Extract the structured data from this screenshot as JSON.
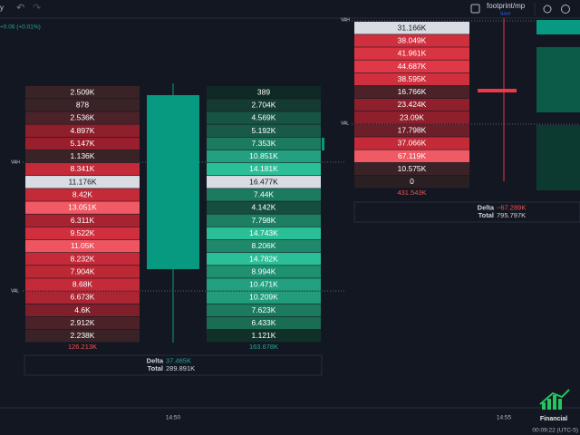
{
  "toolbar": {
    "symbol_fragment": "y",
    "layout_name": "footprint/mp",
    "save_label": "Save"
  },
  "price_change": "+0.06 (+0.01%)",
  "value_area": {
    "left": {
      "vah": "VAH",
      "val": "VAL"
    },
    "right": {
      "vah": "VAH",
      "val": "VAL"
    }
  },
  "footprints": [
    {
      "sell": [
        {
          "text": "2.509K",
          "color": "#3a2326"
        },
        {
          "text": "878",
          "color": "#3a2326"
        },
        {
          "text": "2.536K",
          "color": "#4a2228"
        },
        {
          "text": "4.897K",
          "color": "#8e1f2b"
        },
        {
          "text": "5.147K",
          "color": "#9a1f2c"
        },
        {
          "text": "1.136K",
          "color": "#3a2326"
        },
        {
          "text": "8.341K",
          "color": "#c42a38"
        },
        {
          "text": "11.176K",
          "color": "#d9dce3"
        },
        {
          "text": "8.42K",
          "color": "#c42a38"
        },
        {
          "text": "13.051K",
          "color": "#f05a64"
        },
        {
          "text": "6.311K",
          "color": "#a82330"
        },
        {
          "text": "9.522K",
          "color": "#d0303e"
        },
        {
          "text": "11.05K",
          "color": "#ee5560"
        },
        {
          "text": "8.232K",
          "color": "#c42a38"
        },
        {
          "text": "7.904K",
          "color": "#bd2835"
        },
        {
          "text": "8.68K",
          "color": "#c42a38"
        },
        {
          "text": "6.673K",
          "color": "#ab2532"
        },
        {
          "text": "4.6K",
          "color": "#7e1f29"
        },
        {
          "text": "2.912K",
          "color": "#4a2228"
        },
        {
          "text": "2.238K",
          "color": "#3a2326"
        }
      ],
      "buy": [
        {
          "text": "389",
          "color": "#0f2a25"
        },
        {
          "text": "2.704K",
          "color": "#143a32"
        },
        {
          "text": "4.569K",
          "color": "#185443"
        },
        {
          "text": "5.192K",
          "color": "#185a47"
        },
        {
          "text": "7.353K",
          "color": "#1c7a5e"
        },
        {
          "text": "10.851K",
          "color": "#22a07f"
        },
        {
          "text": "14.181K",
          "color": "#2bbf97"
        },
        {
          "text": "16.477K",
          "color": "#d9dce3"
        },
        {
          "text": "7.44K",
          "color": "#1c7a5e"
        },
        {
          "text": "4.142K",
          "color": "#164d3f"
        },
        {
          "text": "7.798K",
          "color": "#1c7f62"
        },
        {
          "text": "14.743K",
          "color": "#2bbf97"
        },
        {
          "text": "8.206K",
          "color": "#1e8a6b"
        },
        {
          "text": "14.782K",
          "color": "#2bbf97"
        },
        {
          "text": "8.994K",
          "color": "#1f9070"
        },
        {
          "text": "10.471K",
          "color": "#22a07f"
        },
        {
          "text": "10.209K",
          "color": "#229c7b"
        },
        {
          "text": "7.623K",
          "color": "#1c7a5e"
        },
        {
          "text": "6.433K",
          "color": "#1a6c53"
        },
        {
          "text": "1.121K",
          "color": "#12302a"
        }
      ],
      "sell_total": "126.213K",
      "buy_total": "163.678K",
      "delta_label": "Delta",
      "delta": "37.465K",
      "delta_color": "#26a69a",
      "total_label": "Total",
      "total": "289.891K"
    },
    {
      "sell": [
        {
          "text": "31.166K",
          "color": "#d9dce3"
        },
        {
          "text": "38.049K",
          "color": "#d0303e"
        },
        {
          "text": "41.961K",
          "color": "#d83442"
        },
        {
          "text": "44.687K",
          "color": "#e03846"
        },
        {
          "text": "38.595K",
          "color": "#d0303e"
        },
        {
          "text": "16.766K",
          "color": "#4a2228"
        },
        {
          "text": "23.424K",
          "color": "#8e1f2b"
        },
        {
          "text": "23.09K",
          "color": "#8e1f2b"
        },
        {
          "text": "17.798K",
          "color": "#6a1f29"
        },
        {
          "text": "37.066K",
          "color": "#c42a38"
        },
        {
          "text": "67.119K",
          "color": "#f05a64"
        },
        {
          "text": "10.575K",
          "color": "#3a2326"
        },
        {
          "text": "0",
          "color": "#2a1f22"
        }
      ],
      "sell_total": "431.543K",
      "delta_label": "Delta",
      "delta": "−67.289K",
      "delta_color": "#ef5350",
      "total_label": "Total",
      "total": "795.797K"
    }
  ],
  "time_axis": [
    "14:50",
    "14:55"
  ],
  "clock": "00:09:22 (UTC-5)",
  "watermark": "Financial"
}
